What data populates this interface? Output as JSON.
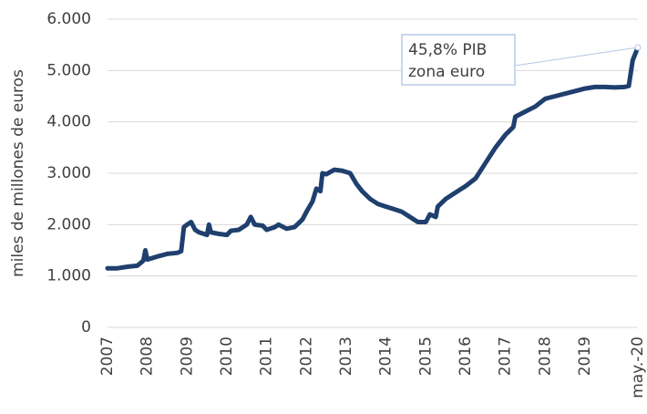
{
  "chart_data": {
    "type": "line",
    "y_label": "miles de millones de euros",
    "annotation": [
      "45,8% PIB",
      "zona euro"
    ],
    "grid": true,
    "color": "#1f3f6e",
    "xlim": [
      2007,
      2020.33
    ],
    "ylim": [
      0,
      6000
    ],
    "yticks": [
      0,
      {
        "value": 1000,
        "label": "1.000"
      },
      {
        "value": 2000,
        "label": "2.000"
      },
      {
        "value": 3000,
        "label": "3.000"
      },
      {
        "value": 4000,
        "label": "4.000"
      },
      {
        "value": 5000,
        "label": "5.000"
      },
      {
        "value": 6000,
        "label": "6.000"
      }
    ],
    "xticks": [
      2007,
      2008,
      2009,
      2010,
      2011,
      2012,
      2013,
      2014,
      2015,
      2016,
      2017,
      2018,
      2019,
      {
        "value": 2020.33,
        "label": "may.-20"
      }
    ],
    "x": [
      2007.0,
      2007.25,
      2007.5,
      2007.75,
      2007.9,
      2007.95,
      2008.0,
      2008.25,
      2008.5,
      2008.75,
      2008.85,
      2008.92,
      2009.0,
      2009.1,
      2009.2,
      2009.3,
      2009.5,
      2009.55,
      2009.6,
      2009.8,
      2010.0,
      2010.1,
      2010.3,
      2010.5,
      2010.6,
      2010.7,
      2010.9,
      2011.0,
      2011.2,
      2011.3,
      2011.5,
      2011.7,
      2011.9,
      2012.0,
      2012.15,
      2012.25,
      2012.35,
      2012.4,
      2012.5,
      2012.7,
      2012.9,
      2013.1,
      2013.25,
      2013.4,
      2013.6,
      2013.8,
      2014.0,
      2014.2,
      2014.4,
      2014.5,
      2014.6,
      2014.8,
      2015.0,
      2015.1,
      2015.25,
      2015.3,
      2015.5,
      2015.7,
      2016.0,
      2016.25,
      2016.5,
      2016.75,
      2017.0,
      2017.2,
      2017.25,
      2017.5,
      2017.75,
      2018.0,
      2018.25,
      2018.5,
      2018.75,
      2019.0,
      2019.25,
      2019.5,
      2019.75,
      2020.0,
      2020.1,
      2020.2,
      2020.33
    ],
    "values": [
      1150,
      1150,
      1180,
      1200,
      1300,
      1500,
      1320,
      1380,
      1430,
      1450,
      1480,
      1950,
      2000,
      2050,
      1900,
      1850,
      1800,
      2000,
      1850,
      1820,
      1800,
      1880,
      1900,
      2000,
      2150,
      2000,
      1980,
      1900,
      1950,
      2000,
      1920,
      1950,
      2100,
      2250,
      2450,
      2700,
      2650,
      3000,
      2980,
      3070,
      3050,
      3000,
      2800,
      2650,
      2500,
      2400,
      2350,
      2300,
      2250,
      2200,
      2150,
      2050,
      2050,
      2200,
      2150,
      2350,
      2500,
      2600,
      2750,
      2900,
      3200,
      3500,
      3750,
      3900,
      4100,
      4200,
      4300,
      4450,
      4500,
      4550,
      4600,
      4650,
      4680,
      4680,
      4670,
      4680,
      4700,
      5200,
      5450
    ]
  }
}
